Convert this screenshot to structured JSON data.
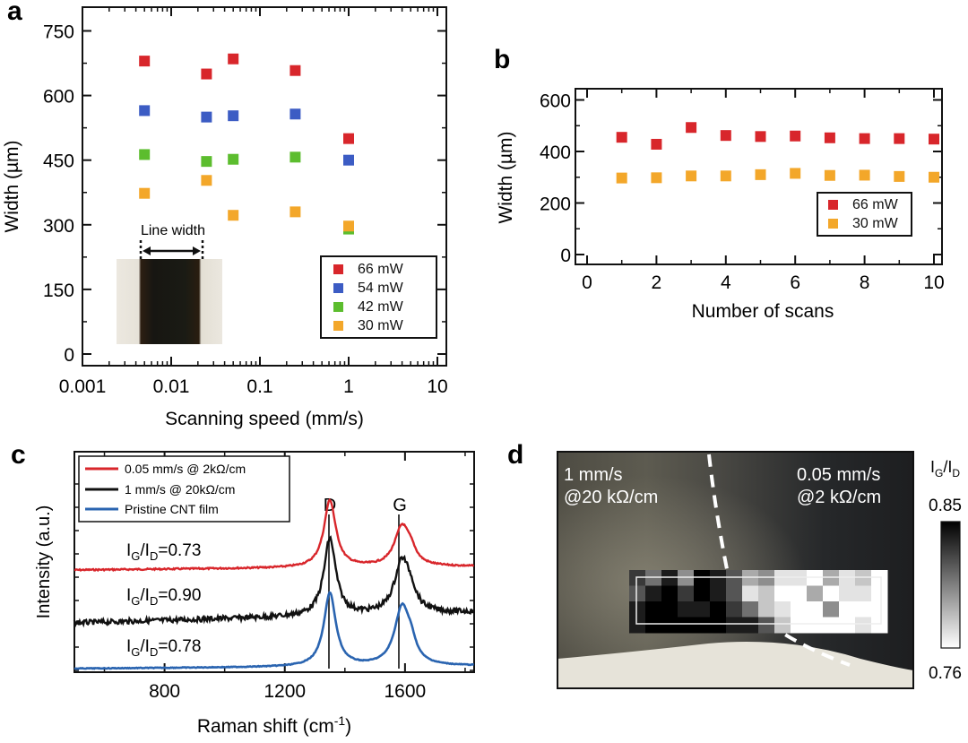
{
  "panels": {
    "a": {
      "label": "a",
      "xlabel": "Scanning speed (mm/s)",
      "ylabel": "Width (µm)",
      "x_ticks": [
        "0.001",
        "0.01",
        "0.1",
        "1",
        "10"
      ],
      "y_ticks": [
        "0",
        "150",
        "300",
        "450",
        "600",
        "750"
      ],
      "inset_label": "Line width"
    },
    "b": {
      "label": "b",
      "xlabel": "Number of scans",
      "ylabel": "Width (µm)",
      "x_ticks": [
        "0",
        "2",
        "4",
        "6",
        "8",
        "10"
      ],
      "y_ticks": [
        "0",
        "200",
        "400",
        "600"
      ]
    },
    "c": {
      "label": "c",
      "xlabel": "Raman shift (cm",
      "xlabel_sup": "-1",
      "xlabel_end": ")",
      "ylabel": "Intensity (a.u.)",
      "x_ticks": [
        "800",
        "1200",
        "1600"
      ],
      "peak_D": "D",
      "peak_G": "G",
      "ratio_prefix": "I",
      "ratio_sub1": "G",
      "ratio_mid": "/I",
      "ratio_sub2": "D",
      "ratios": [
        "=0.73",
        "=0.90",
        "=0.78"
      ]
    },
    "d": {
      "label": "d",
      "text_left_1": "1 mm/s",
      "text_left_2": "@20 kΩ/cm",
      "text_right_1": "0.05 mm/s",
      "text_right_2": "@2 kΩ/cm",
      "colorbar_title_i": "I",
      "colorbar_title_g": "G",
      "colorbar_title_mid": "/I",
      "colorbar_title_d": "D",
      "colorbar_max": "0.85",
      "colorbar_min": "0.76"
    }
  },
  "colors": {
    "red": "#d8262b",
    "blue": "#3c5cc4",
    "green": "#5cbd2e",
    "orange": "#f3a72a",
    "black": "#111111",
    "spec_blue": "#2a64b0"
  },
  "chart_data": [
    {
      "panel": "a",
      "type": "scatter",
      "xscale": "log",
      "xlim": [
        0.001,
        10
      ],
      "ylim": [
        0,
        800
      ],
      "xlabel": "Scanning speed (mm/s)",
      "ylabel": "Width (µm)",
      "legend_position": "bottom-right",
      "series": [
        {
          "name": "66 mW",
          "color": "#d8262b",
          "x": [
            0.005,
            0.025,
            0.05,
            0.25,
            1
          ],
          "y": [
            680,
            650,
            685,
            658,
            500
          ]
        },
        {
          "name": "54 mW",
          "color": "#3c5cc4",
          "x": [
            0.005,
            0.025,
            0.05,
            0.25,
            1
          ],
          "y": [
            565,
            550,
            553,
            557,
            450
          ]
        },
        {
          "name": "42 mW",
          "color": "#5cbd2e",
          "x": [
            0.005,
            0.025,
            0.05,
            0.25,
            1
          ],
          "y": [
            463,
            447,
            452,
            457,
            290
          ]
        },
        {
          "name": "30 mW",
          "color": "#f3a72a",
          "x": [
            0.005,
            0.025,
            0.05,
            0.25,
            1
          ],
          "y": [
            373,
            403,
            322,
            330,
            297
          ]
        }
      ]
    },
    {
      "panel": "b",
      "type": "scatter",
      "xlim": [
        0,
        10
      ],
      "ylim": [
        -20,
        600
      ],
      "xlabel": "Number of scans",
      "ylabel": "Width (µm)",
      "legend_position": "right",
      "series": [
        {
          "name": "66 mW",
          "color": "#d8262b",
          "x": [
            1,
            2,
            3,
            4,
            5,
            6,
            7,
            8,
            9,
            10
          ],
          "y": [
            455,
            428,
            493,
            462,
            458,
            460,
            453,
            450,
            450,
            448
          ]
        },
        {
          "name": "30 mW",
          "color": "#f3a72a",
          "x": [
            1,
            2,
            3,
            4,
            5,
            6,
            7,
            8,
            9,
            10
          ],
          "y": [
            297,
            298,
            305,
            305,
            310,
            315,
            307,
            308,
            303,
            300
          ]
        }
      ]
    },
    {
      "panel": "c",
      "type": "line",
      "xlim": [
        500,
        1830
      ],
      "xlabel": "Raman shift (cm-1)",
      "ylabel": "Intensity (a.u.)",
      "legend_position": "top-left",
      "peaks": {
        "D": 1350,
        "G": 1590
      },
      "series": [
        {
          "name": "0.05 mm/s @ 2kΩ/cm",
          "color": "#d8262b",
          "ratio": "0.73"
        },
        {
          "name": "1 mm/s @ 20kΩ/cm",
          "color": "#111111",
          "ratio": "0.90"
        },
        {
          "name": "Pristine CNT film",
          "color": "#2a64b0",
          "ratio": "0.78"
        }
      ]
    },
    {
      "panel": "d",
      "type": "heatmap",
      "colorbar_range": [
        0.76,
        0.85
      ],
      "colorbar_title": "IG/ID",
      "rows": 4,
      "cols": 16,
      "values": [
        [
          0.83,
          0.81,
          0.84,
          0.8,
          0.85,
          0.84,
          0.82,
          0.79,
          0.8,
          0.77,
          0.77,
          0.76,
          0.79,
          0.77,
          0.78,
          0.76
        ],
        [
          0.82,
          0.84,
          0.85,
          0.83,
          0.85,
          0.84,
          0.82,
          0.77,
          0.78,
          0.76,
          0.76,
          0.79,
          0.76,
          0.77,
          0.77,
          0.76
        ],
        [
          0.84,
          0.85,
          0.85,
          0.84,
          0.84,
          0.85,
          0.83,
          0.81,
          0.78,
          0.77,
          0.76,
          0.76,
          0.8,
          0.76,
          0.76,
          0.76
        ],
        [
          0.84,
          0.85,
          0.85,
          0.85,
          0.85,
          0.85,
          0.84,
          0.84,
          0.82,
          0.78,
          0.76,
          0.76,
          0.76,
          0.76,
          0.77,
          0.76
        ]
      ]
    }
  ]
}
